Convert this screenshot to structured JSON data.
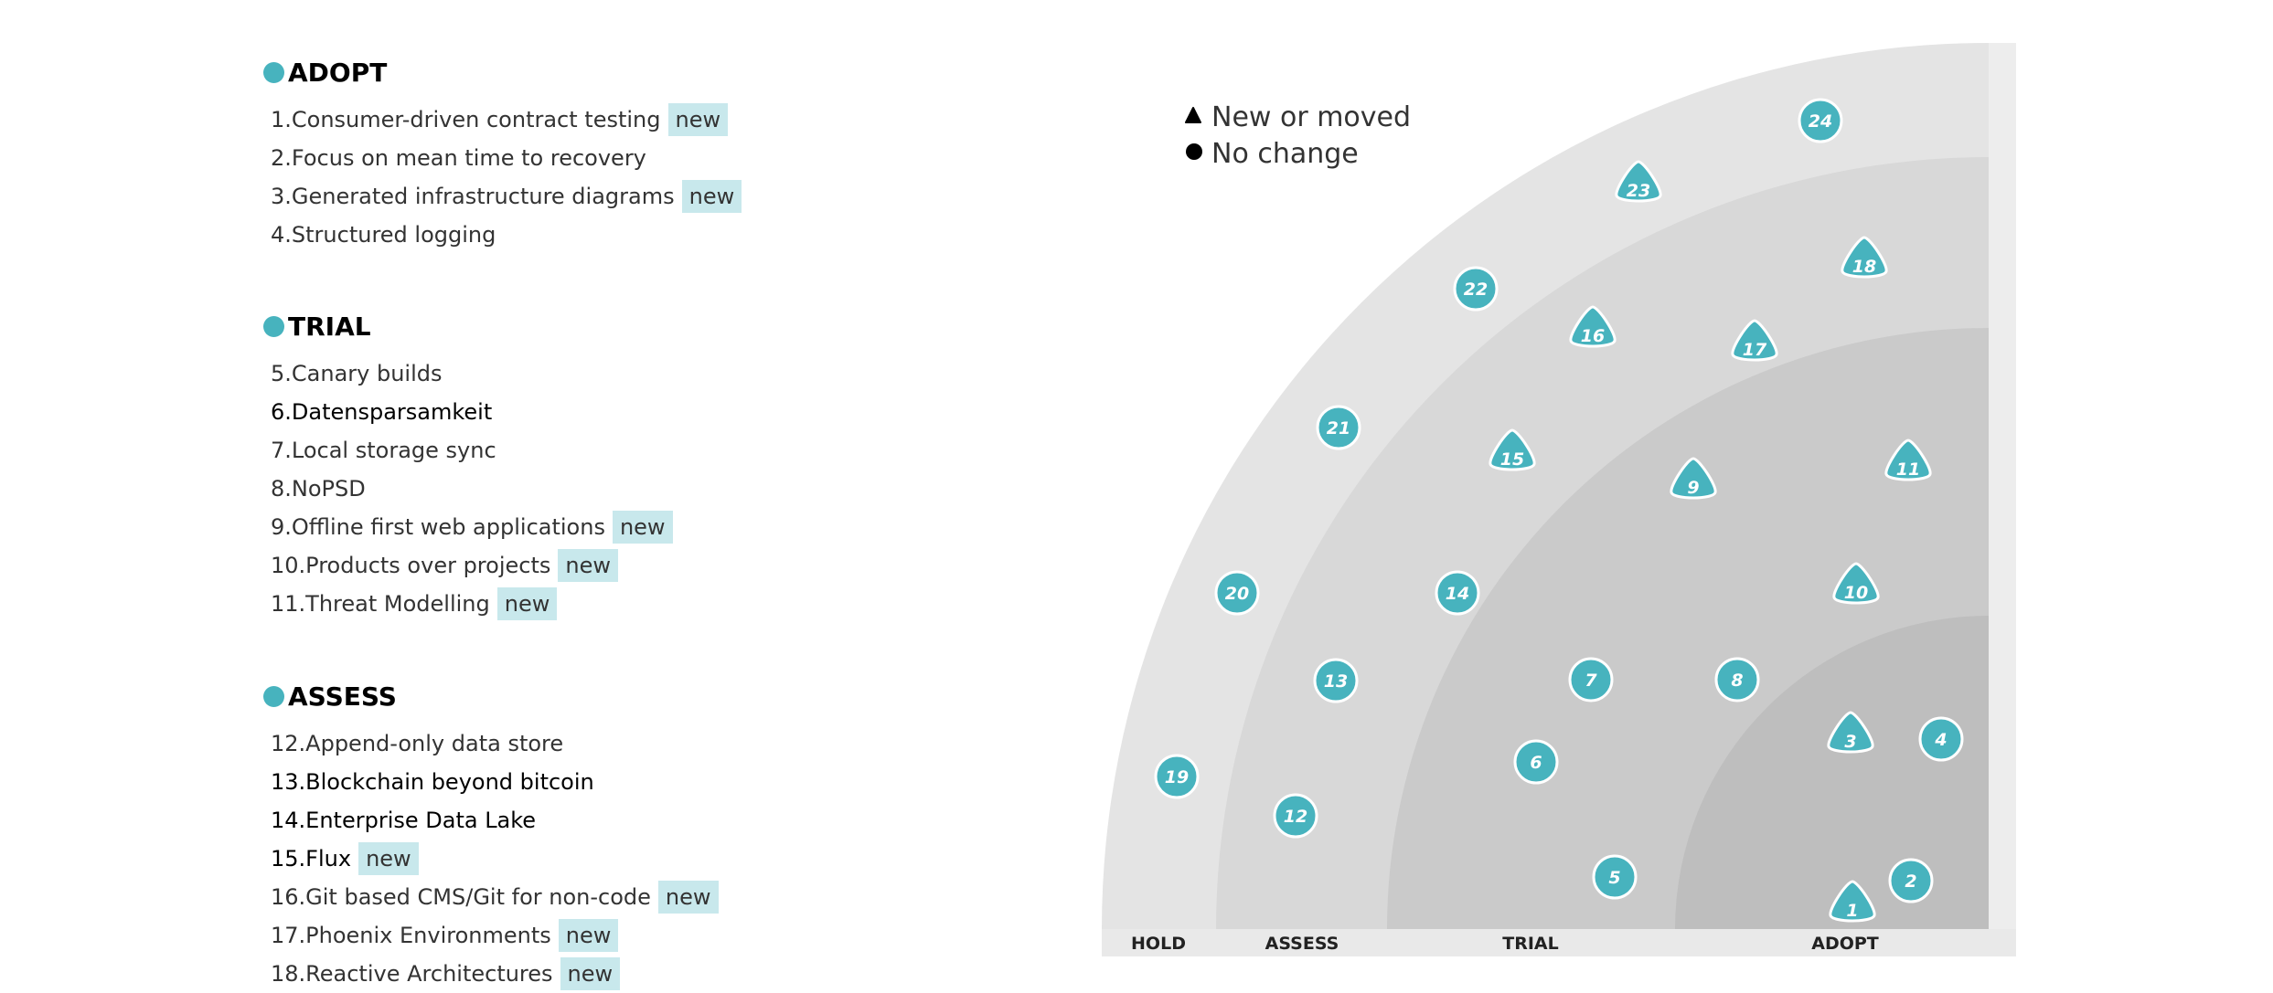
{
  "sections": [
    {
      "title": "ADOPT",
      "items": [
        {
          "label": "1.Consumer-driven contract testing",
          "tag": "new"
        },
        {
          "label": "2.Focus on mean time to recovery",
          "tag": ""
        },
        {
          "label": "3.Generated infrastructure diagrams",
          "tag": "new"
        },
        {
          "label": "4.Structured logging",
          "tag": ""
        }
      ]
    },
    {
      "title": "TRIAL",
      "items": [
        {
          "label": "5.Canary builds",
          "tag": ""
        },
        {
          "label": "6.Datensparsamkeit",
          "tag": ""
        },
        {
          "label": "7.Local storage sync",
          "tag": ""
        },
        {
          "label": "8.NoPSD",
          "tag": ""
        },
        {
          "label": "9.Offline first web applications",
          "tag": "new"
        },
        {
          "label": "10.Products over projects",
          "tag": "new"
        },
        {
          "label": "11.Threat Modelling",
          "tag": "new"
        }
      ]
    },
    {
      "title": "ASSESS",
      "items": [
        {
          "label": "12.Append-only data store",
          "tag": ""
        },
        {
          "label": "13.Blockchain beyond bitcoin",
          "tag": ""
        },
        {
          "label": "14.Enterprise Data Lake",
          "tag": ""
        },
        {
          "label": "15.Flux",
          "tag": "new"
        },
        {
          "label": "16.Git based CMS/Git for non-code",
          "tag": "new"
        },
        {
          "label": "17.Phoenix Environments",
          "tag": "new"
        },
        {
          "label": "18.Reactive Architectures",
          "tag": "new"
        }
      ]
    }
  ],
  "legend": {
    "moved_label": "New or moved",
    "nochange_label": "No change"
  },
  "rings": [
    "HOLD",
    "ASSESS",
    "TRIAL",
    "ADOPT"
  ],
  "colors": {
    "accent": "#47b3be",
    "tag_bg": "#c8e8ec",
    "ring_hold": "#e4e4e4",
    "ring_assess": "#d8d8d8",
    "ring_trial": "#cacaca",
    "ring_adopt": "#bebebe"
  },
  "blips": [
    {
      "num": "1",
      "shape": "triangle"
    },
    {
      "num": "2",
      "shape": "circle"
    },
    {
      "num": "3",
      "shape": "triangle"
    },
    {
      "num": "4",
      "shape": "circle"
    },
    {
      "num": "5",
      "shape": "circle"
    },
    {
      "num": "6",
      "shape": "circle"
    },
    {
      "num": "7",
      "shape": "circle"
    },
    {
      "num": "8",
      "shape": "circle"
    },
    {
      "num": "9",
      "shape": "triangle"
    },
    {
      "num": "10",
      "shape": "triangle"
    },
    {
      "num": "11",
      "shape": "triangle"
    },
    {
      "num": "12",
      "shape": "circle"
    },
    {
      "num": "13",
      "shape": "circle"
    },
    {
      "num": "14",
      "shape": "circle"
    },
    {
      "num": "15",
      "shape": "triangle"
    },
    {
      "num": "16",
      "shape": "triangle"
    },
    {
      "num": "17",
      "shape": "triangle"
    },
    {
      "num": "18",
      "shape": "triangle"
    },
    {
      "num": "19",
      "shape": "circle"
    },
    {
      "num": "20",
      "shape": "circle"
    },
    {
      "num": "21",
      "shape": "circle"
    },
    {
      "num": "22",
      "shape": "circle"
    },
    {
      "num": "23",
      "shape": "triangle"
    },
    {
      "num": "24",
      "shape": "circle"
    }
  ]
}
